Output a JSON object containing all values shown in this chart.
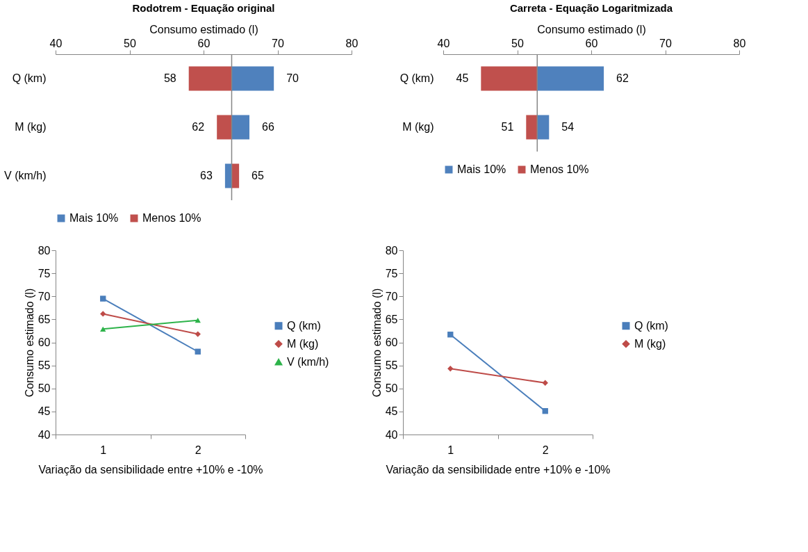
{
  "chart_data": [
    {
      "type": "bar",
      "orientation": "horizontal",
      "title": "Rodotrem - Equação original",
      "xlabel": "Consumo estimado (l)",
      "categories": [
        "Q (km)",
        "M (kg)",
        "V (km/h)"
      ],
      "xlim": [
        40,
        80
      ],
      "xticks": [
        40,
        50,
        60,
        70,
        80
      ],
      "legend": "bottom",
      "grid": false,
      "ref_lines": [
        {
          "axis": "x",
          "value": 63.8,
          "color": "#868686"
        }
      ],
      "series": [
        {
          "name": "Mais 10%",
          "color": "#4f81bd",
          "base": [
            63.8,
            63.8,
            63.8
          ],
          "values": [
            5.7,
            2.4,
            -0.9
          ],
          "value_labels": [
            "70",
            "66",
            "63"
          ]
        },
        {
          "name": "Menos 10%",
          "color": "#c0504d",
          "base": [
            63.8,
            63.8,
            63.8
          ],
          "values": [
            -5.8,
            -2.0,
            1.0
          ],
          "value_labels": [
            "58",
            "62",
            "65"
          ]
        }
      ]
    },
    {
      "type": "bar",
      "orientation": "horizontal",
      "title": "Carreta - Equação Logaritmizada",
      "xlabel": "Consumo estimado (l)",
      "categories": [
        "Q (km)",
        "M (kg)"
      ],
      "xlim": [
        40,
        80
      ],
      "xticks": [
        40,
        50,
        60,
        70,
        80
      ],
      "legend": "bottom",
      "grid": false,
      "ref_lines": [
        {
          "axis": "x",
          "value": 52.7,
          "color": "#868686"
        }
      ],
      "series": [
        {
          "name": "Mais 10%",
          "color": "#4f81bd",
          "base": [
            52.7,
            52.7
          ],
          "values": [
            9.0,
            1.6
          ],
          "value_labels": [
            "62",
            "54"
          ]
        },
        {
          "name": "Menos 10%",
          "color": "#c0504d",
          "base": [
            52.7,
            52.7
          ],
          "values": [
            -7.6,
            -1.5
          ],
          "value_labels": [
            "45",
            "51"
          ]
        }
      ]
    },
    {
      "type": "line",
      "xlabel": "Variação da sensibilidade entre +10% e -10%",
      "ylabel": "Consumo estimado (l)",
      "categories": [
        "1",
        "2"
      ],
      "ylim": [
        40,
        80
      ],
      "yticks": [
        40,
        45,
        50,
        55,
        60,
        65,
        70,
        75,
        80
      ],
      "legend": "right",
      "grid": false,
      "line_style": "solid",
      "series": [
        {
          "name": "Q (km)",
          "color": "#4a7ebb",
          "marker": "square",
          "values": [
            69.5,
            58.0
          ]
        },
        {
          "name": "M (kg)",
          "color": "#be4b48",
          "marker": "diamond",
          "values": [
            66.2,
            61.8
          ]
        },
        {
          "name": "V (km/h)",
          "color": "#2db34a",
          "marker": "triangle",
          "values": [
            62.9,
            64.8
          ]
        }
      ]
    },
    {
      "type": "line",
      "xlabel": "Variação da sensibilidade entre +10% e -10%",
      "ylabel": "Consumo estimado (l)",
      "categories": [
        "1",
        "2"
      ],
      "ylim": [
        40,
        80
      ],
      "yticks": [
        40,
        45,
        50,
        55,
        60,
        65,
        70,
        75,
        80
      ],
      "legend": "right",
      "grid": false,
      "line_style": "solid",
      "series": [
        {
          "name": "Q (km)",
          "color": "#4a7ebb",
          "marker": "square",
          "values": [
            61.7,
            45.1
          ]
        },
        {
          "name": "M (kg)",
          "color": "#be4b48",
          "marker": "diamond",
          "values": [
            54.3,
            51.2
          ]
        }
      ]
    }
  ]
}
